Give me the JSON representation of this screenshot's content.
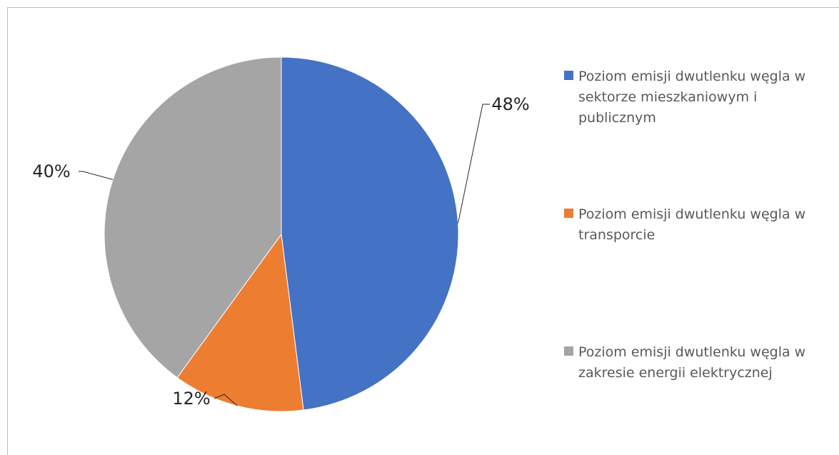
{
  "chart_data": {
    "type": "pie",
    "slices": [
      {
        "label": "Poziom emisji dwutlenku węgla w sektorze mieszkaniowym i publicznym",
        "value": 48,
        "value_label": "48%",
        "color": "#4472c4"
      },
      {
        "label": "Poziom emisji dwutlenku węgla w transporcie",
        "value": 12,
        "value_label": "12%",
        "color": "#ed7d31"
      },
      {
        "label": "Poziom emisji dwutlenku węgla w zakresie energii elektrycznej",
        "value": 40,
        "value_label": "40%",
        "color": "#a5a5a5"
      }
    ],
    "legend_position": "right",
    "start_angle": "12 o'clock",
    "direction": "clockwise"
  }
}
